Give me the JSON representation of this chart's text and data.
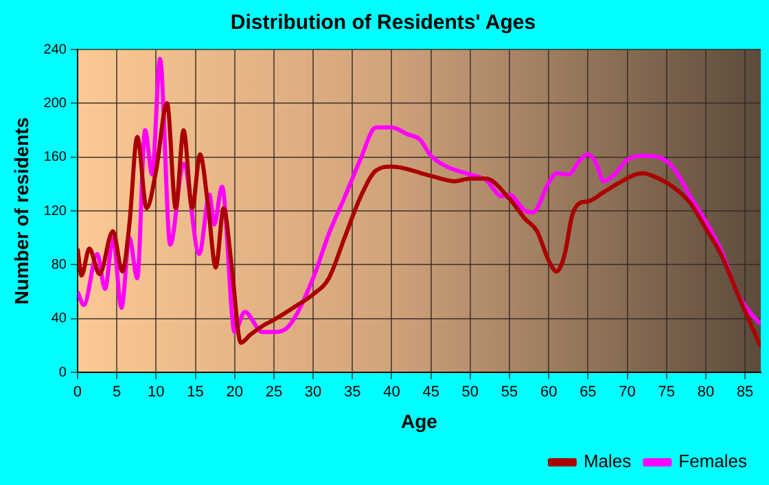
{
  "chart_data": {
    "type": "line",
    "title": "Distribution of Residents' Ages",
    "xlabel": "Age",
    "ylabel": "Number of residents",
    "xlim": [
      0,
      87
    ],
    "xticks": [
      0,
      5,
      10,
      15,
      20,
      25,
      30,
      35,
      40,
      45,
      50,
      55,
      60,
      65,
      70,
      75,
      80,
      85
    ],
    "ylim": [
      0,
      240
    ],
    "yticks": [
      0,
      40,
      80,
      120,
      160,
      200,
      240
    ],
    "grid": true,
    "legend": "bottom right",
    "marker": "none",
    "line_style": "solid",
    "series": [
      {
        "name": "Males",
        "color": "#aa0000",
        "x": [
          0,
          0.5,
          1.5,
          2.8,
          4.5,
          5.7,
          6.6,
          7.6,
          8.8,
          10,
          11.4,
          12.5,
          13.5,
          14.6,
          15.6,
          16.6,
          17.6,
          18.6,
          19.6,
          20.8,
          22,
          23.7,
          25,
          28,
          30,
          32,
          34,
          36,
          38,
          40,
          45,
          48,
          50,
          52,
          55,
          57,
          58.5,
          60,
          61,
          62,
          63,
          64,
          65,
          67,
          69,
          71,
          72,
          74,
          76,
          78,
          80,
          82,
          84,
          86,
          87
        ],
        "values": [
          92,
          72,
          92,
          73,
          105,
          75,
          110,
          175,
          122,
          150,
          200,
          122,
          180,
          122,
          162,
          125,
          78,
          122,
          80,
          22,
          28,
          35,
          39,
          50,
          58,
          70,
          100,
          130,
          150,
          153,
          146,
          142,
          144,
          144,
          129,
          114,
          105,
          83,
          75,
          87,
          117,
          126,
          127,
          134,
          141,
          147,
          148,
          144,
          137,
          126,
          107,
          87,
          59,
          32,
          19
        ]
      },
      {
        "name": "Females",
        "color": "#ff00ff",
        "x": [
          0,
          0.8,
          2.5,
          3.5,
          4.5,
          5.6,
          6.6,
          7.6,
          8.6,
          9.5,
          10.5,
          11.8,
          13.5,
          15.5,
          16.8,
          17.4,
          18.4,
          20,
          21.3,
          23.5,
          25,
          27,
          30,
          32,
          34,
          36,
          38,
          40,
          42,
          43.6,
          45,
          47,
          50,
          52,
          54,
          55,
          57,
          58,
          60,
          61,
          62.5,
          64,
          65,
          66,
          67,
          68.5,
          70,
          72,
          74,
          76,
          78,
          80,
          82,
          84,
          86,
          87
        ],
        "values": [
          60,
          50,
          88,
          62,
          100,
          48,
          100,
          70,
          180,
          147,
          233,
          95,
          155,
          88,
          132,
          110,
          138,
          30,
          45,
          30,
          30,
          35,
          70,
          103,
          130,
          158,
          182,
          182,
          177,
          173,
          161,
          153,
          147,
          143,
          131,
          132,
          120,
          119,
          141,
          148,
          147,
          158,
          162,
          156,
          142,
          148,
          158,
          161,
          160,
          151,
          131,
          112,
          90,
          59,
          42,
          36
        ]
      }
    ]
  }
}
